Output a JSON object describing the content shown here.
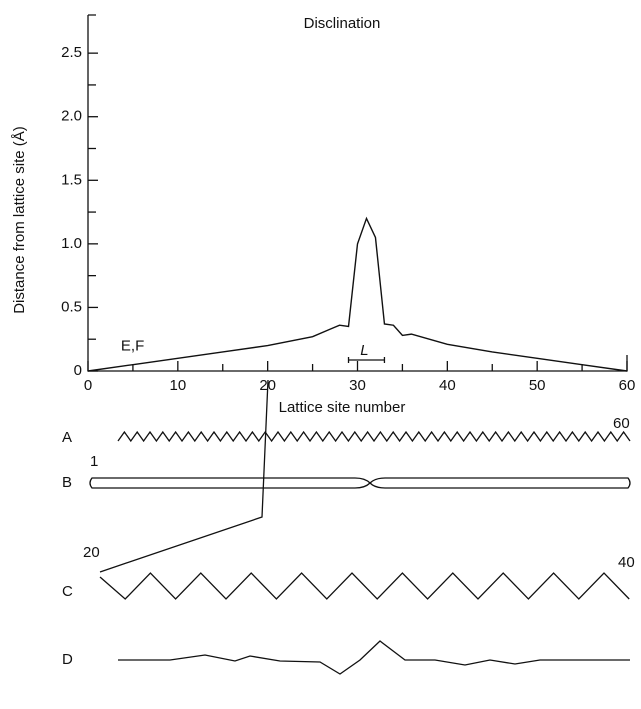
{
  "chart_data": {
    "type": "line",
    "title": "Disclination",
    "xlabel": "Lattice site number",
    "ylabel": "Distance from lattice site (Å)",
    "x": [
      0,
      5,
      10,
      15,
      20,
      25,
      27,
      28,
      29,
      30,
      31,
      32,
      33,
      34,
      35,
      36,
      40,
      45,
      50,
      55,
      60
    ],
    "series": [
      {
        "name": "Disclination",
        "color": "#111111",
        "values": [
          0,
          0.05,
          0.1,
          0.15,
          0.2,
          0.27,
          0.33,
          0.36,
          0.35,
          1.0,
          1.2,
          1.05,
          0.37,
          0.36,
          0.28,
          0.29,
          0.21,
          0.15,
          0.1,
          0.05,
          0
        ]
      }
    ],
    "xlim": [
      0,
      60
    ],
    "xticks": [
      0,
      10,
      20,
      30,
      40,
      50,
      60
    ],
    "xminorticks": [
      5,
      15,
      25,
      35,
      45,
      55
    ],
    "ylim": [
      0,
      2.8
    ],
    "yticks": [
      0,
      0.5,
      {
        "value": 1.0,
        "label": "1.0"
      },
      1.5,
      {
        "value": 2.0,
        "label": "2.0"
      },
      2.5
    ],
    "yminorticks": [
      0.25,
      0.75,
      1.25,
      1.75,
      2.25
    ],
    "annotations": [
      {
        "text": "E,F",
        "x": 5,
        "y": 0.05
      },
      {
        "text": "L",
        "x": 31,
        "y": 0
      }
    ]
  },
  "diagram": {
    "rows": [
      "A",
      "B",
      "C",
      "D"
    ],
    "labels": [
      "1",
      "60",
      "20",
      "40"
    ]
  }
}
